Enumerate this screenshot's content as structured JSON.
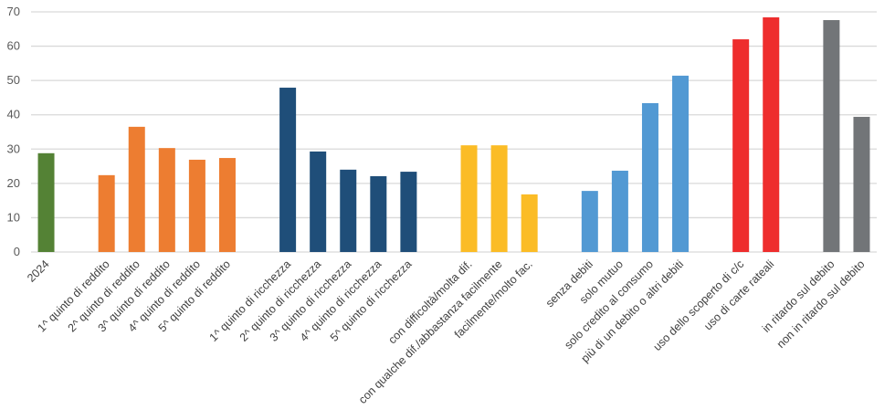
{
  "chart_data": {
    "type": "bar",
    "title": "",
    "xlabel": "",
    "ylabel": "",
    "ylim": [
      0,
      70
    ],
    "yticks": [
      0,
      10,
      20,
      30,
      40,
      50,
      60,
      70
    ],
    "grid": true,
    "legend": "none",
    "categories": [
      "2024",
      "",
      "1^ quinto di reddito",
      "2^ quinto di reddito",
      "3^ quinto di reddito",
      "4^ quinto di reddito",
      "5^ quinto di reddito",
      "",
      "1^ quinto di ricchezza",
      "2^ quinto di ricchezza",
      "3^ quinto di ricchezza",
      "4^ quinto di ricchezza",
      "5^ quinto di ricchezza",
      "",
      "con difficoltà/molta dif.",
      "con qualche dif./abbastanza facilmente",
      "facilmente/molto fac.",
      "",
      "senza debiti",
      "solo mutuo",
      "solo credito al consumo",
      "più di un debito o altri debiti",
      "",
      "uso dello scoperto di c/c",
      "uso di carte rateali",
      "",
      "in ritardo sul debito",
      "non in ritardo sul debito"
    ],
    "values": [
      28.8,
      null,
      22.4,
      36.5,
      30.3,
      26.9,
      27.4,
      null,
      47.9,
      29.3,
      24.0,
      22.1,
      23.4,
      null,
      31.1,
      31.1,
      16.8,
      null,
      17.8,
      23.7,
      43.4,
      51.4,
      null,
      62.0,
      68.4,
      null,
      67.6,
      39.4
    ],
    "colors": [
      "#548235",
      null,
      "#ed7d31",
      "#ed7d31",
      "#ed7d31",
      "#ed7d31",
      "#ed7d31",
      null,
      "#1f4e79",
      "#1f4e79",
      "#1f4e79",
      "#1f4e79",
      "#1f4e79",
      null,
      "#fbbc26",
      "#fbbc26",
      "#fbbc26",
      null,
      "#5299d3",
      "#5299d3",
      "#5299d3",
      "#5299d3",
      null,
      "#ee2d2d",
      "#ee2d2d",
      null,
      "#727578",
      "#727578"
    ]
  }
}
